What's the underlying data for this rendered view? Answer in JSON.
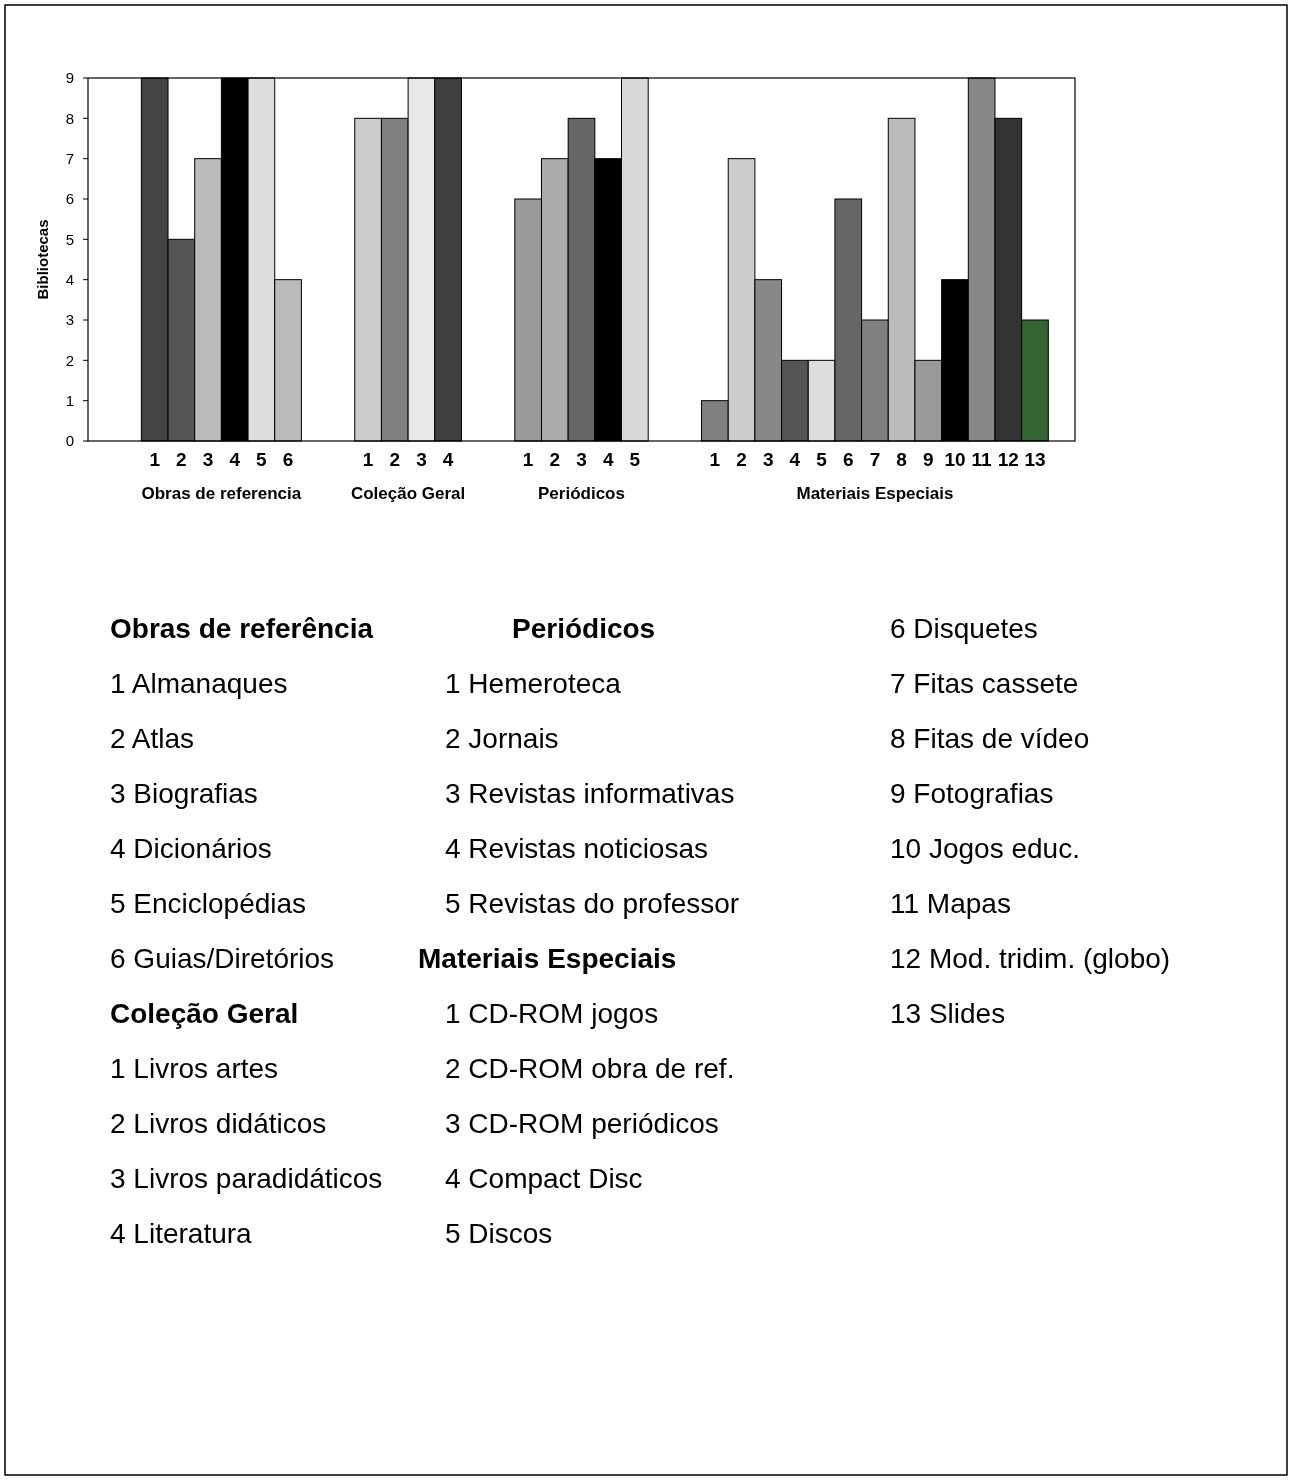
{
  "chart_data": {
    "type": "bar",
    "ylabel": "Bibliotecas",
    "categories": [
      null,
      null,
      "1",
      "2",
      "3",
      "4",
      "5",
      "6",
      null,
      null,
      "1",
      "2",
      "3",
      "4",
      null,
      null,
      "1",
      "2",
      "3",
      "4",
      "5",
      null,
      null,
      "1",
      "2",
      "3",
      "4",
      "5",
      "6",
      "7",
      "8",
      "9",
      "10",
      "11",
      "12",
      "13",
      null
    ],
    "values": [
      null,
      null,
      9,
      5,
      7,
      9,
      9,
      4,
      null,
      null,
      8,
      8,
      9,
      9,
      null,
      null,
      6,
      7,
      8,
      7,
      9,
      null,
      null,
      1,
      7,
      4,
      2,
      2,
      6,
      3,
      8,
      2,
      4,
      9,
      8,
      3,
      null
    ],
    "colors": [
      null,
      null,
      "#444444",
      "#555555",
      "#bbbbbb",
      "#000000",
      "#dddddd",
      "#bbbbbb",
      null,
      null,
      "#cccccc",
      "#808080",
      "#e8e8e8",
      "#404040",
      null,
      null,
      "#999999",
      "#aaaaaa",
      "#666666",
      "#000000",
      "#d8d8d8",
      null,
      null,
      "#808080",
      "#cccccc",
      "#888888",
      "#555555",
      "#dddddd",
      "#666666",
      "#808080",
      "#bbbbbb",
      "#999999",
      "#000000",
      "#888888",
      "#333333",
      "#336633",
      null
    ],
    "ylim": [
      0,
      9
    ],
    "yticks": [
      0,
      1,
      2,
      3,
      4,
      5,
      6,
      7,
      8,
      9
    ],
    "grid": false,
    "annotations": [
      "Obras de referencia",
      "Coleção Geral",
      "Periódicos",
      "Materiais  Especiais",
      "Obras de referência",
      "1  Almanaques",
      "2  Atlas",
      "3  Biografias",
      "4  Dicionários",
      "5  Enciclopédias",
      "6  Guias/Diretórios",
      "Coleção Geral",
      "1  Livros artes",
      "2  Livros didáticos",
      "3  Livros paradidáticos",
      "4  Literatura",
      "Periódicos",
      "1 Hemeroteca",
      "2 Jornais",
      "3 Revistas informativas",
      "4 Revistas noticiosas",
      "5 Revistas do professor",
      "Materiais Especiais",
      "1 CD-ROM jogos",
      "2 CD-ROM obra de ref.",
      "3 CD-ROM periódicos",
      "4 Compact Disc",
      "5 Discos",
      "6  Disquetes",
      "7  Fitas cassete",
      "8  Fitas de vídeo",
      "9  Fotografias",
      "10 Jogos educ.",
      "11 Mapas",
      "12 Mod. tridim. (globo)",
      "13 Slides"
    ]
  }
}
